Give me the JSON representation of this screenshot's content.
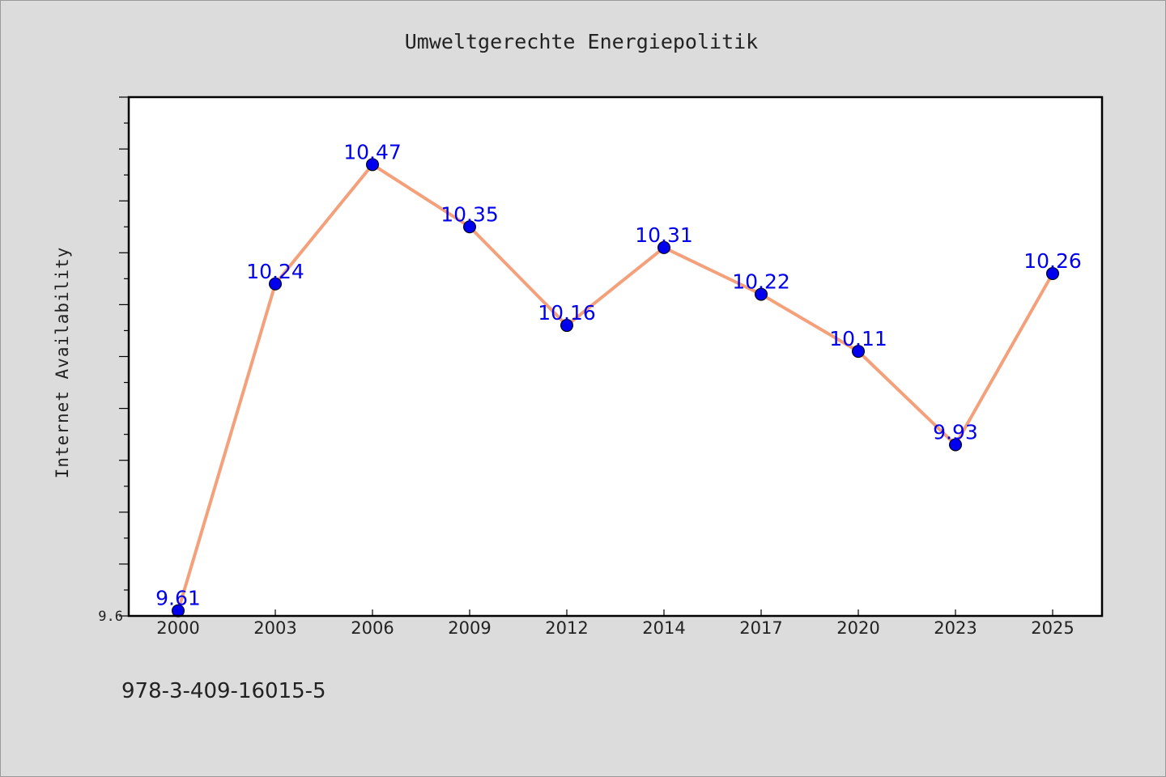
{
  "chart_data": {
    "type": "line",
    "title": "Umweltgerechte Energiepolitik",
    "xlabel": "",
    "ylabel": "Internet Availability",
    "categories": [
      "2000",
      "2003",
      "2006",
      "2009",
      "2012",
      "2014",
      "2017",
      "2020",
      "2023",
      "2025"
    ],
    "series": [
      {
        "values": [
          9.61,
          10.24,
          10.47,
          10.35,
          10.16,
          10.31,
          10.22,
          10.11,
          9.93,
          10.26
        ],
        "data_labels": [
          "9.61",
          "10.24",
          "10.47",
          "10.35",
          "10.16",
          "10.31",
          "10.22",
          "10.11",
          "9.93",
          "10.26"
        ],
        "line_color": "#f4a07a",
        "marker_color": "#0000ee",
        "label_color": "#0000ee"
      }
    ],
    "ylim": [
      9.6,
      10.6
    ],
    "y_tick_labels": [
      "9.6"
    ],
    "grid": false,
    "legend": "none"
  },
  "footer": {
    "isbn": "978-3-409-16015-5"
  },
  "colors": {
    "background": "#dcdcdc",
    "plot_background": "#ffffff",
    "axis": "#000000"
  }
}
